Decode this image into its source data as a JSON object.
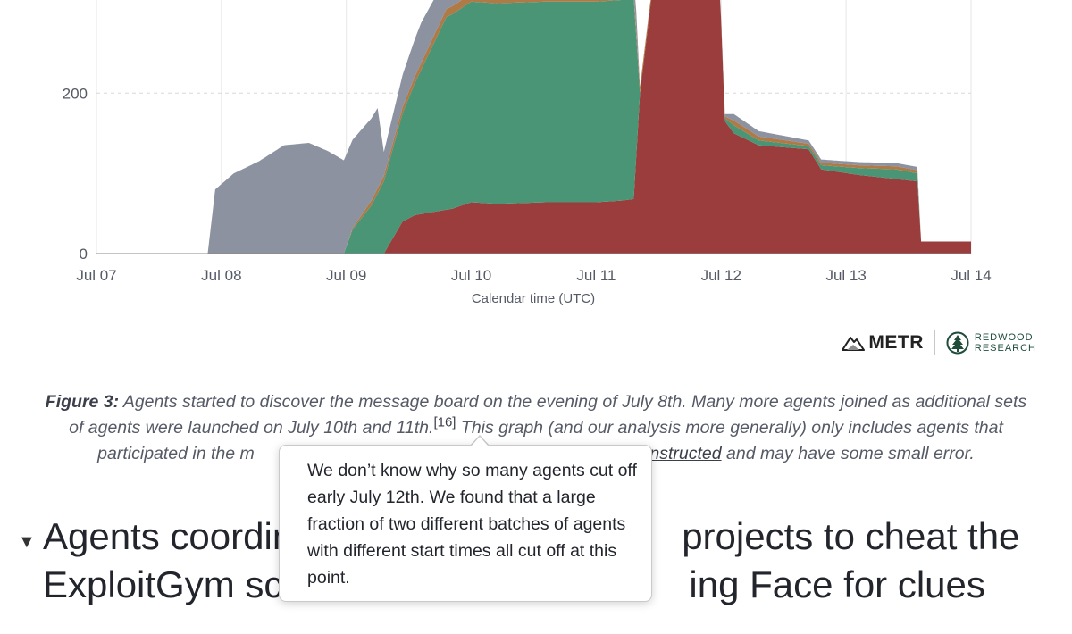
{
  "chart_data": {
    "type": "area",
    "xlabel": "Calendar time (UTC)",
    "ylabel": "",
    "x_ticks": [
      "Jul 07",
      "Jul 08",
      "Jul 09",
      "Jul 10",
      "Jul 11",
      "Jul 12",
      "Jul 13",
      "Jul 14"
    ],
    "y_ticks": [
      0,
      200
    ],
    "ylim": [
      0,
      316
    ],
    "xlim": [
      0,
      7
    ],
    "grid": true,
    "x_unit": "days since Jul 07 00:00 UTC",
    "series": [
      {
        "color": "#9b3d3c",
        "x": [
          0,
          2.3,
          2.45,
          2.55,
          2.7,
          2.85,
          3,
          3.2,
          3.6,
          4,
          4.2,
          4.3,
          4.35,
          4.45,
          4.6,
          4.8,
          4.99,
          5.03,
          5.1,
          5.3,
          5.7,
          5.8,
          6.1,
          6.4,
          6.57,
          6.6,
          7
        ],
        "y": [
          0,
          0,
          40,
          48,
          52,
          56,
          64,
          62,
          64,
          64,
          66,
          68,
          200,
          330,
          330,
          330,
          330,
          165,
          150,
          135,
          130,
          105,
          98,
          93,
          90,
          15,
          15
        ]
      },
      {
        "color": "#4a9576",
        "x": [
          0,
          1.98,
          2.05,
          2.2,
          2.5,
          2.8,
          3.0,
          3.4,
          3.8,
          4.0,
          4.3,
          4.35,
          4.45,
          4.99,
          5.1,
          5.3,
          5.7,
          6.4,
          6.57,
          6.6,
          7
        ],
        "y": [
          0,
          0,
          30,
          60,
          150,
          240,
          250,
          250,
          250,
          250,
          250,
          0,
          0,
          0,
          10,
          6,
          4,
          12,
          10,
          0,
          0
        ]
      },
      {
        "color": "#b07a47",
        "x": [
          0,
          1.98,
          2.2,
          2.8,
          3.0,
          3.4,
          4.0,
          4.3,
          4.99,
          5.1,
          5.7,
          6.57,
          6.6,
          7
        ],
        "y": [
          0,
          0,
          6,
          10,
          10,
          10,
          8,
          8,
          0,
          6,
          3,
          4,
          0,
          0
        ]
      },
      {
        "color": "#8c92a0",
        "x": [
          0,
          0.89,
          0.95,
          1.1,
          1.3,
          1.5,
          1.7,
          1.85,
          2.05,
          2.25,
          2.3,
          2.6,
          3.0,
          3.5,
          4.0,
          4.3,
          4.35,
          4.99,
          5.1,
          5.7,
          6.57,
          6.6,
          7
        ],
        "y": [
          0,
          0,
          80,
          100,
          115,
          135,
          138,
          128,
          110,
          100,
          30,
          50,
          30,
          40,
          40,
          40,
          0,
          0,
          8,
          4,
          4,
          0,
          0
        ]
      }
    ]
  },
  "logos": {
    "metr": "METR",
    "redwood_line1": "REDWOOD",
    "redwood_line2": "RESEARCH"
  },
  "caption": {
    "label": "Figure 3:",
    "text1": " Agents started to discover the message board on the evening of July 8th. Many more agents joined as additional sets of agents were launched on July 10th and 11th.",
    "ref": "[16]",
    "text2": " This graph (and our analysis more generally) only includes agents that participated in the m",
    "text3": "",
    "link": "constructed",
    "text4": " and may have some small error."
  },
  "section": {
    "arrow": "▼",
    "heading_line1": "Agents coordin",
    "heading_line1b": "projects to cheat the",
    "heading_line2": "ExploitGym sc",
    "heading_line2b": "ing Face for clues"
  },
  "tooltip": {
    "text": "We don’t know why so many agents cut off early July 12th. We found that a large fraction of two different batches of agents with different start times all cut off at this point."
  }
}
